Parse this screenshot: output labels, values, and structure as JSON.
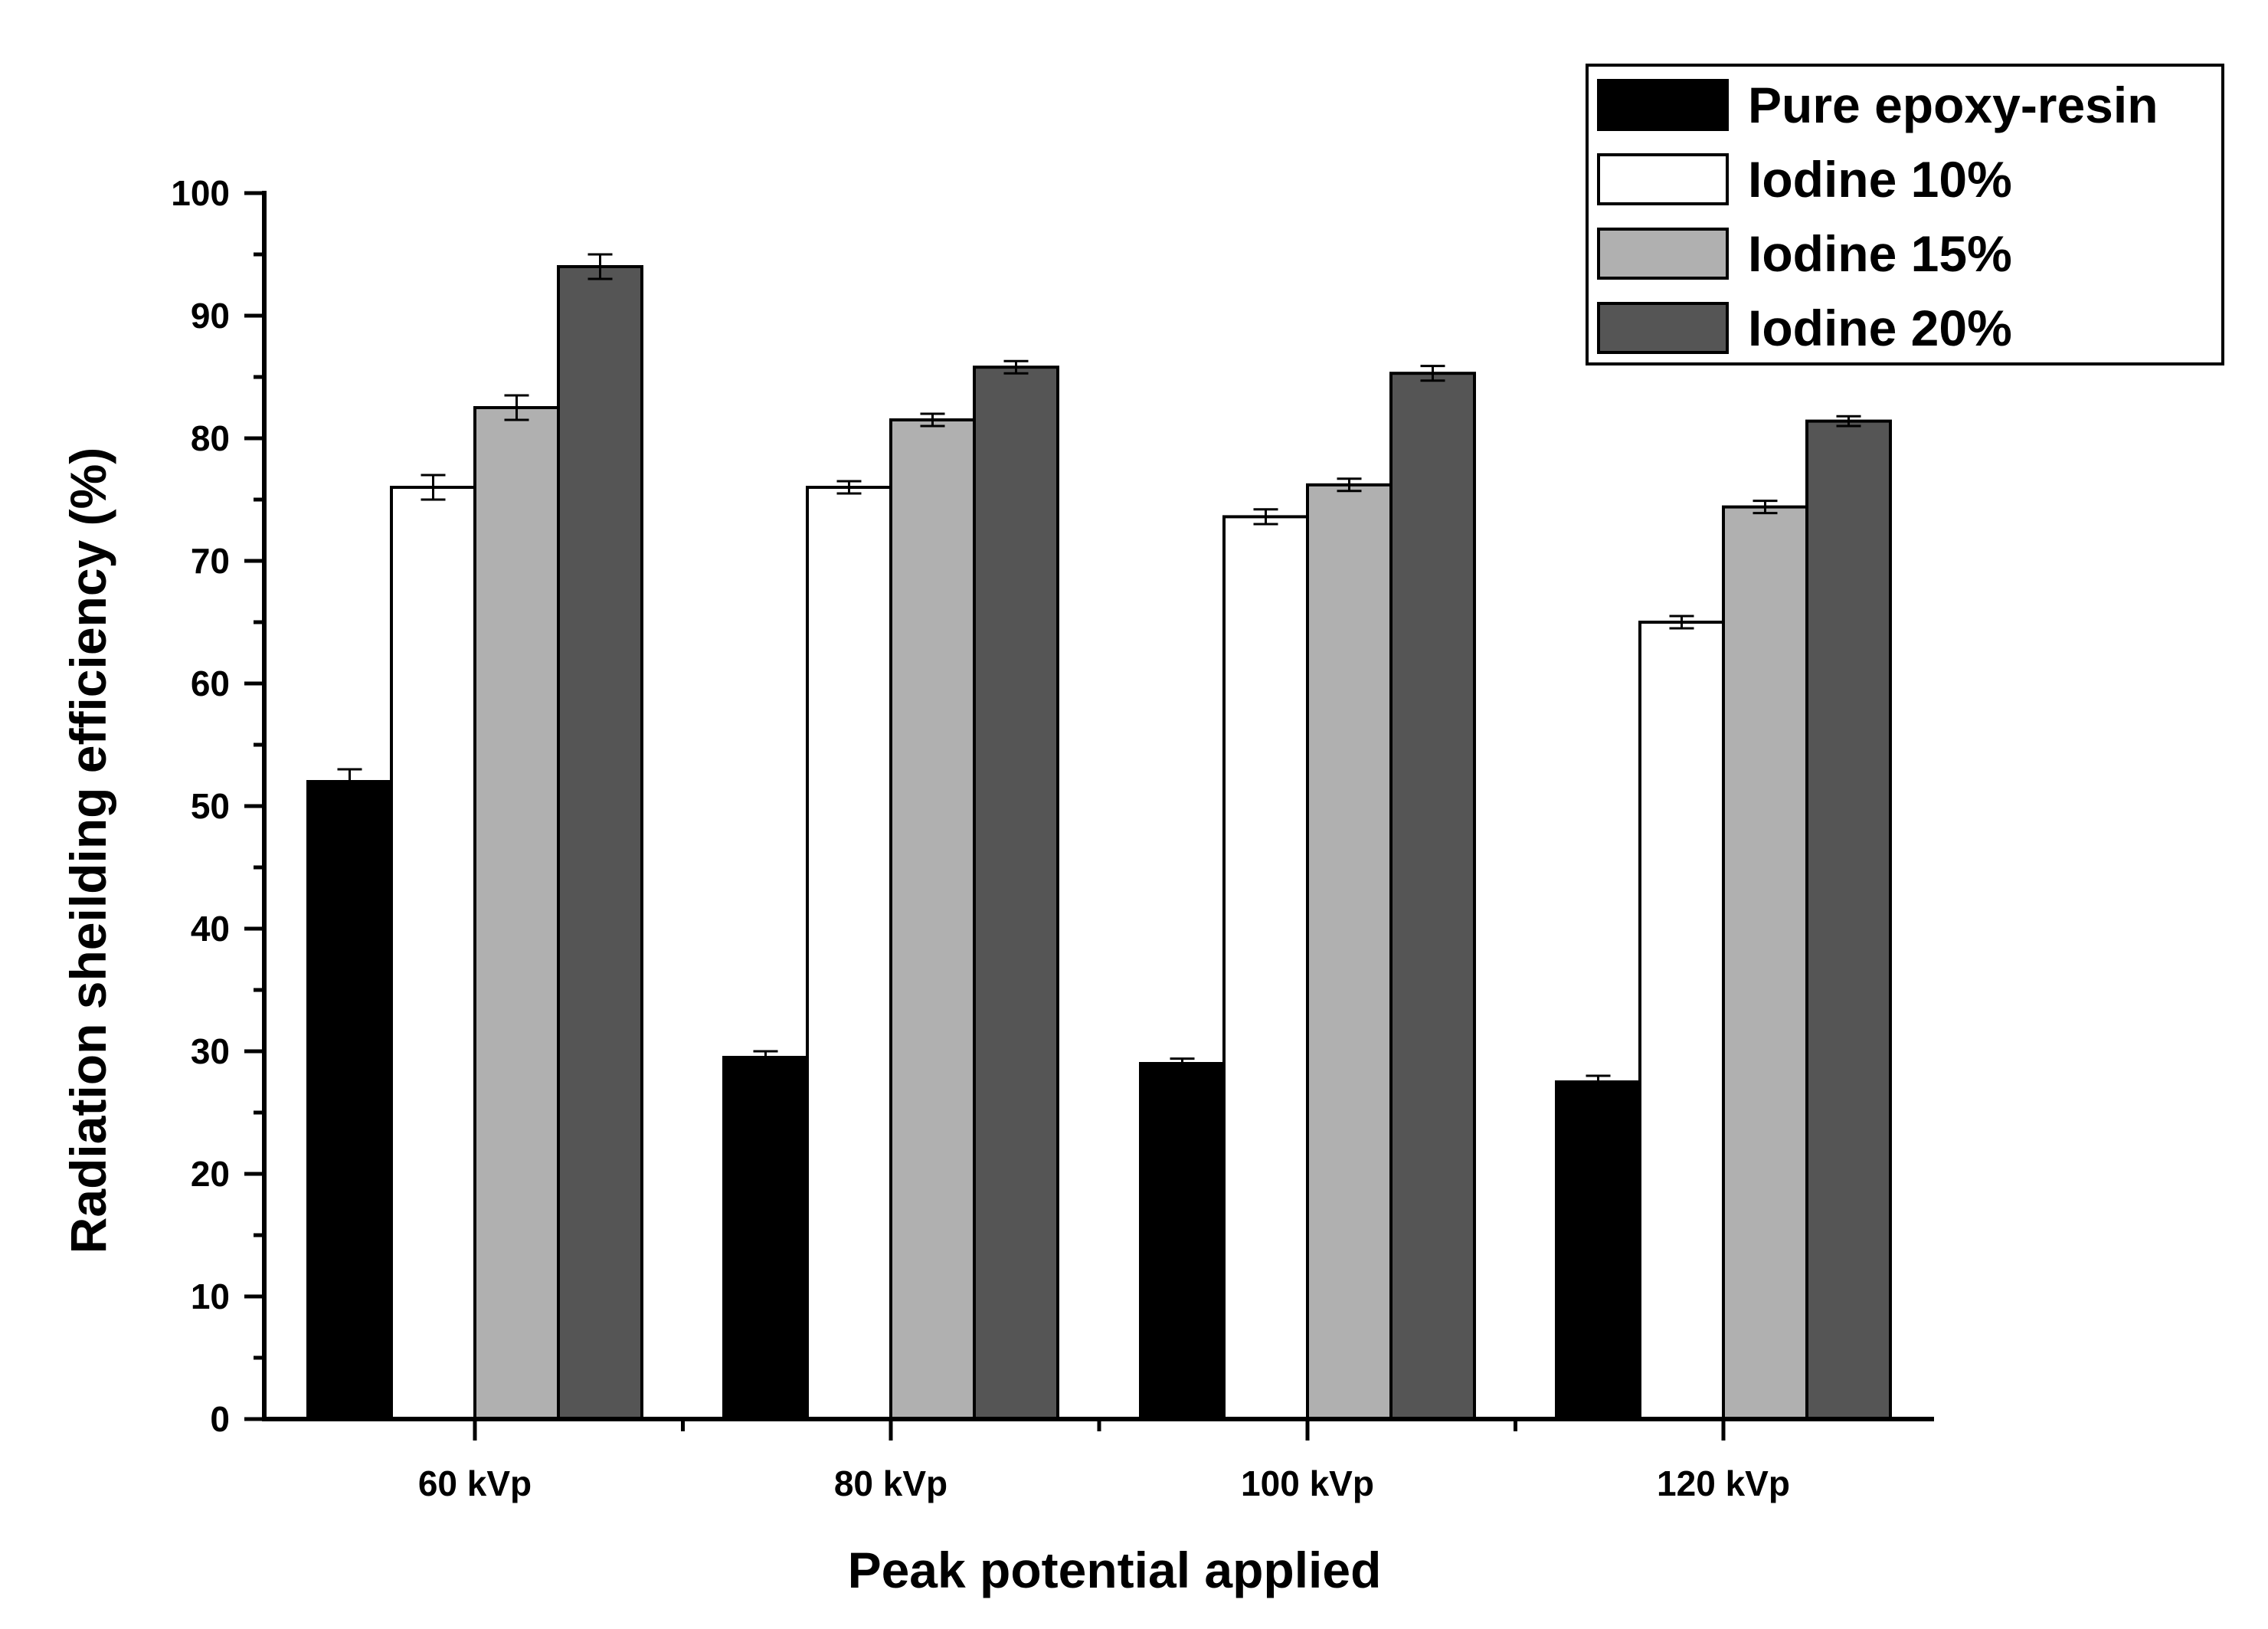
{
  "chart_data": {
    "type": "bar",
    "title": "",
    "xlabel": "Peak potential applied",
    "ylabel": "Radiation sheilding efficiency (%)",
    "ylim": [
      0,
      100
    ],
    "yticks": [
      "0",
      "10",
      "20",
      "30",
      "40",
      "50",
      "60",
      "70",
      "80",
      "90",
      "100"
    ],
    "categories": [
      "60 kVp",
      "80 kVp",
      "100 kVp",
      "120 kVp"
    ],
    "legend_position": "top-right",
    "series": [
      {
        "name": "Pure epoxy-resin",
        "color": "#000000",
        "values": [
          52.0,
          29.5,
          29.0,
          27.5
        ],
        "errors": [
          1.0,
          0.5,
          0.4,
          0.5
        ]
      },
      {
        "name": "Iodine 10%",
        "color": "#ffffff",
        "values": [
          76.0,
          76.0,
          73.6,
          65.0
        ],
        "errors": [
          1.0,
          0.5,
          0.6,
          0.5
        ]
      },
      {
        "name": "Iodine 15%",
        "color": "#b0b0b0",
        "values": [
          82.5,
          81.5,
          76.2,
          74.4
        ],
        "errors": [
          1.0,
          0.5,
          0.5,
          0.5
        ]
      },
      {
        "name": "Iodine 20%",
        "color": "#555555",
        "values": [
          94.0,
          85.8,
          85.3,
          81.4
        ],
        "errors": [
          1.0,
          0.5,
          0.6,
          0.4
        ]
      }
    ]
  }
}
